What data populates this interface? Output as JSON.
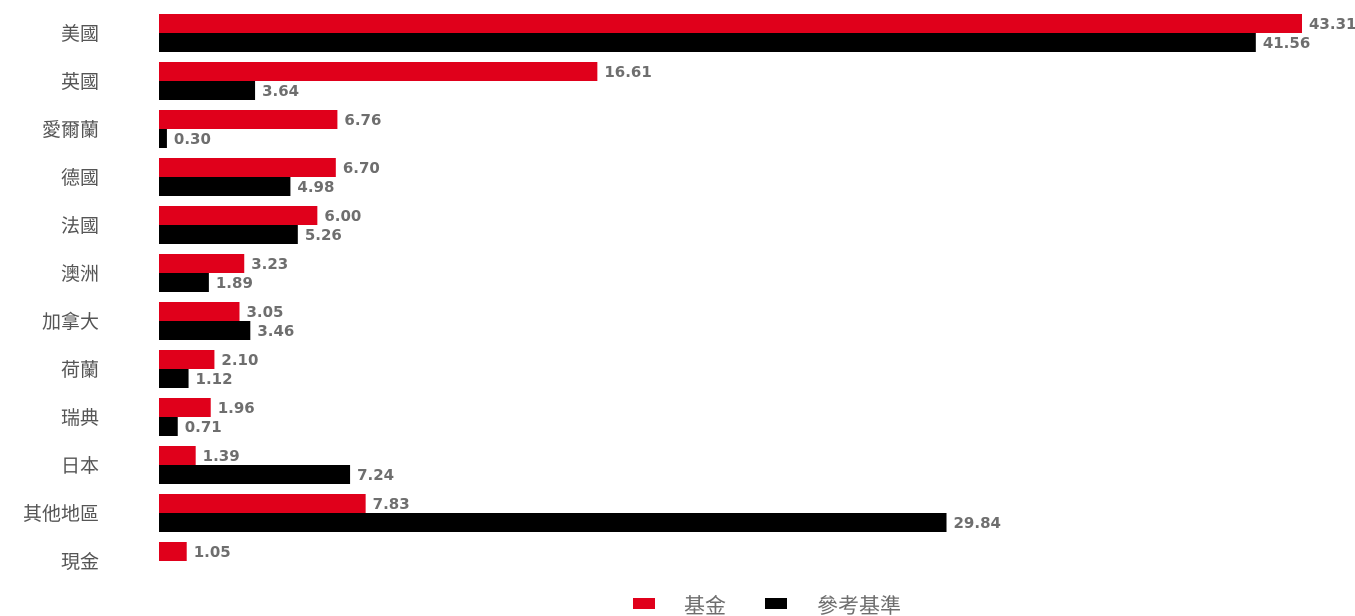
{
  "chart_data": {
    "type": "bar",
    "orientation": "horizontal",
    "categories": [
      "美國",
      "英國",
      "愛爾蘭",
      "德國",
      "法國",
      "澳洲",
      "加拿大",
      "荷蘭",
      "瑞典",
      "日本",
      "其他地區",
      "現金"
    ],
    "series": [
      {
        "name": "基金",
        "color": "#e0001b",
        "values": [
          43.31,
          16.61,
          6.76,
          6.7,
          6.0,
          3.23,
          3.05,
          2.1,
          1.96,
          1.39,
          7.83,
          1.05
        ],
        "labels": [
          "43.31",
          "16.61",
          "6.76",
          "6.70",
          "6.00",
          "3.23",
          "3.05",
          "2.10",
          "1.96",
          "1.39",
          "7.83",
          "1.05"
        ]
      },
      {
        "name": "參考基準",
        "color": "#000000",
        "values": [
          41.56,
          3.64,
          0.3,
          4.98,
          5.26,
          1.89,
          3.46,
          1.12,
          0.71,
          7.24,
          29.84,
          null
        ],
        "labels": [
          "41.56",
          "3.64",
          "0.30",
          "4.98",
          "5.26",
          "1.89",
          "3.46",
          "1.12",
          "0.71",
          "7.24",
          "29.84",
          ""
        ]
      }
    ],
    "xlim": [
      0,
      43.31
    ],
    "grid": false,
    "legend_position": "bottom-center"
  }
}
